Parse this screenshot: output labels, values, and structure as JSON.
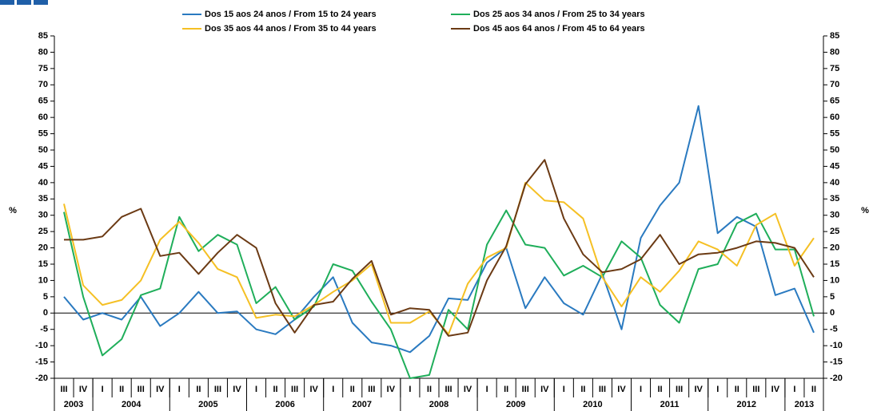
{
  "chart_data": {
    "type": "line",
    "categories": [
      "III",
      "IV",
      "I",
      "II",
      "III",
      "IV",
      "I",
      "II",
      "III",
      "IV",
      "I",
      "II",
      "III",
      "IV",
      "I",
      "II",
      "III",
      "IV",
      "I",
      "II",
      "III",
      "IV",
      "I",
      "II",
      "III",
      "IV",
      "I",
      "II",
      "III",
      "IV",
      "I",
      "II",
      "III",
      "IV",
      "I",
      "II",
      "III",
      "IV",
      "I",
      "II"
    ],
    "category_groups": [
      {
        "name": "2003",
        "count": 2
      },
      {
        "name": "2004",
        "count": 4
      },
      {
        "name": "2005",
        "count": 4
      },
      {
        "name": "2006",
        "count": 4
      },
      {
        "name": "2007",
        "count": 4
      },
      {
        "name": "2008",
        "count": 4
      },
      {
        "name": "2009",
        "count": 4
      },
      {
        "name": "2010",
        "count": 4
      },
      {
        "name": "2011",
        "count": 4
      },
      {
        "name": "2012",
        "count": 4
      },
      {
        "name": "2013",
        "count": 2
      }
    ],
    "series": [
      {
        "name": "Dos 15 aos 24 anos / From 15 to 24 years",
        "color": "#2a7ac0",
        "values": [
          5,
          -2,
          0,
          -2,
          5,
          -4,
          0,
          6.5,
          0,
          0.5,
          -5,
          -6.5,
          -2,
          5,
          11,
          -3,
          -9,
          -10,
          -12,
          -7,
          4.5,
          4,
          15.5,
          20,
          1.5,
          11,
          3,
          -0.5,
          12,
          -5,
          23,
          33,
          40,
          63.5,
          24.5,
          29.5,
          26.5,
          5.5,
          7.5,
          -6
        ]
      },
      {
        "name": "Dos 25 aos 34 anos / From 25 to 34 years",
        "color": "#1fae5a",
        "values": [
          31,
          5,
          -13,
          -8,
          5.5,
          7.5,
          29.5,
          19,
          24,
          21,
          3,
          8,
          -2,
          2,
          15,
          13,
          3.5,
          -5,
          -20,
          -19,
          1,
          -5,
          21,
          31.5,
          21,
          20,
          11.5,
          14.5,
          11,
          22,
          17,
          2.5,
          -3,
          13.5,
          15,
          27.5,
          30.5,
          19.5,
          19.5,
          -1
        ]
      },
      {
        "name": "Dos 35 aos 44 anos / From 35 to 44 years",
        "color": "#f5c024",
        "values": [
          33.5,
          8.5,
          2.5,
          4,
          10,
          22.5,
          28,
          21.5,
          13.5,
          11,
          -1.5,
          -0.5,
          -1,
          2.5,
          6.5,
          10,
          15,
          -3,
          -3,
          0.5,
          -6.5,
          9,
          17,
          20,
          40,
          34.5,
          34,
          29,
          11,
          2,
          11,
          6.5,
          13,
          22,
          19.5,
          14.5,
          27,
          30.5,
          14.5,
          23
        ]
      },
      {
        "name": "Dos 45 aos 64 anos / From 45 to 64 years",
        "color": "#6b3a14",
        "values": [
          22.5,
          22.5,
          23.5,
          29.5,
          32,
          17.5,
          18.5,
          12,
          18.5,
          24,
          20,
          3,
          -6,
          2.5,
          3.5,
          10.5,
          16,
          -0.5,
          1.5,
          1,
          -7,
          -6,
          10,
          20.5,
          39.5,
          47,
          29,
          18,
          12.5,
          13.5,
          16.5,
          24,
          15,
          18,
          18.5,
          20,
          22,
          21.5,
          20,
          11
        ]
      }
    ],
    "ylabel": "%",
    "y2label": "%",
    "ylim": [
      -20,
      85
    ],
    "yticks": [
      -20,
      -15,
      -10,
      -5,
      0,
      5,
      10,
      15,
      20,
      25,
      30,
      35,
      40,
      45,
      50,
      55,
      60,
      65,
      70,
      75,
      80,
      85
    ],
    "y2lim": [
      -20,
      85
    ],
    "y2ticks": [
      -20,
      -15,
      -10,
      -5,
      0,
      5,
      10,
      15,
      20,
      25,
      30,
      35,
      40,
      45,
      50,
      55,
      60,
      65,
      70,
      75,
      80,
      85
    ]
  }
}
